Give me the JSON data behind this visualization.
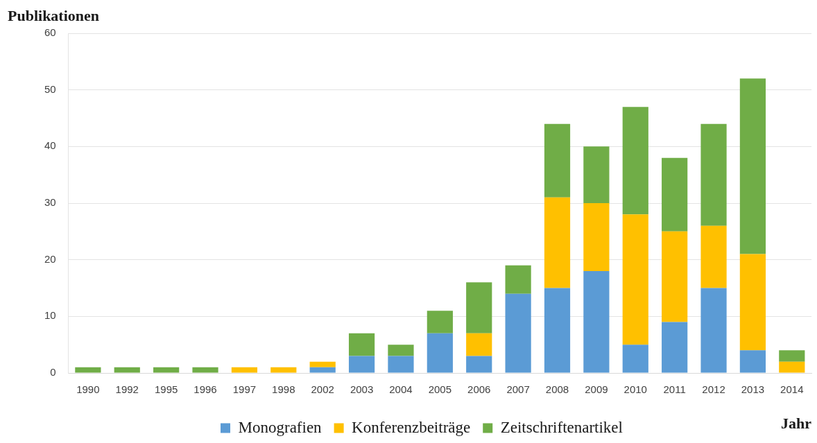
{
  "chart_data": {
    "type": "bar",
    "ylabel": "Publikationen",
    "xlabel": "Jahr",
    "categories": [
      "1990",
      "1992",
      "1995",
      "1996",
      "1997",
      "1998",
      "2002",
      "2003",
      "2004",
      "2005",
      "2006",
      "2007",
      "2008",
      "2009",
      "2010",
      "2011",
      "2012",
      "2013",
      "2014"
    ],
    "stacked": true,
    "series": [
      {
        "name": "Monografien",
        "color": "#5b9bd5",
        "values": [
          0,
          0,
          0,
          0,
          0,
          0,
          1,
          3,
          3,
          7,
          3,
          14,
          15,
          18,
          5,
          9,
          15,
          4,
          0
        ]
      },
      {
        "name": "Konferenzbeiträge",
        "color": "#ffc000",
        "values": [
          0,
          0,
          0,
          0,
          1,
          1,
          1,
          0,
          0,
          0,
          4,
          0,
          16,
          12,
          23,
          16,
          11,
          17,
          2
        ]
      },
      {
        "name": "Zeitschriftenartikel",
        "color": "#70ad47",
        "values": [
          1,
          1,
          1,
          1,
          0,
          0,
          0,
          4,
          2,
          4,
          9,
          5,
          13,
          10,
          19,
          13,
          18,
          31,
          2
        ]
      }
    ],
    "ylim": [
      0,
      60
    ],
    "yticks": [
      0,
      10,
      20,
      30,
      40,
      50,
      60
    ],
    "grid": "y",
    "legend": "bottom"
  }
}
